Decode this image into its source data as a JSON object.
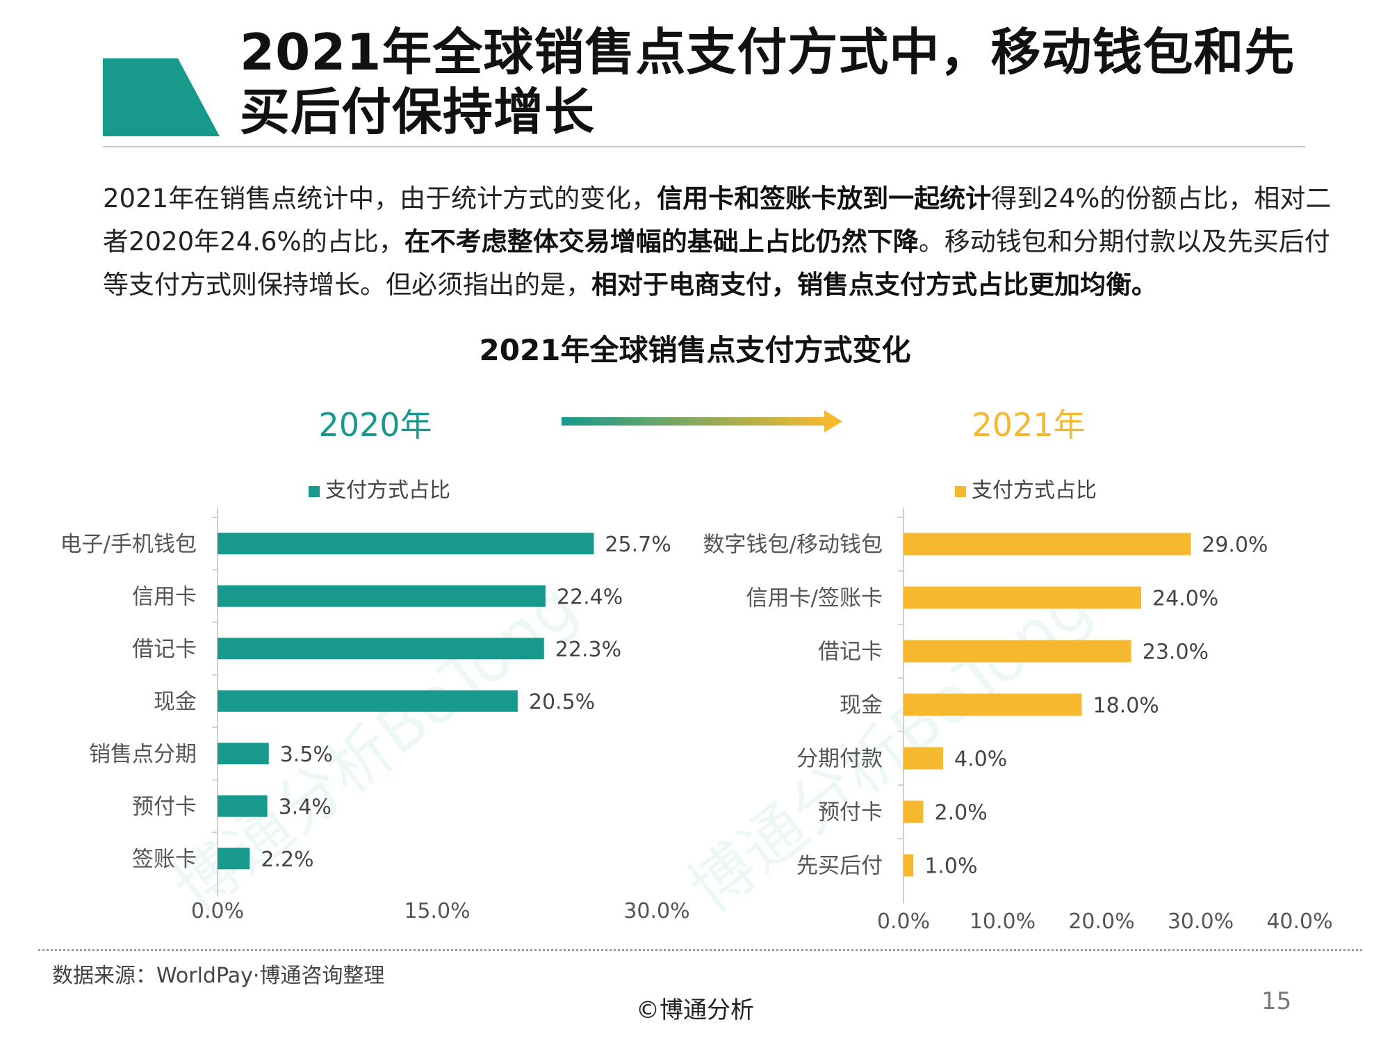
{
  "title": "2021年全球销售点支付方式中，移动钱包和先买后付保持增长",
  "intro": {
    "t1": "2021年在销售点统计中，由于统计方式的变化，",
    "b1": "信用卡和签账卡放到一起统计",
    "t2": "得到24%的份额占比，相对二者2020年24.6%的占比，",
    "b2": "在不考虑整体交易增幅的基础上占比仍然下降",
    "t3": "。移动钱包和分期付款以及先买后付等支付方式则保持增长。但必须指出的是，",
    "b3": "相对于电商支付，销售点支付方式占比更加均衡。"
  },
  "chart_title": "2021年全球销售点支付方式变化",
  "year_left": "2020年",
  "year_right": "2021年",
  "colors": {
    "teal": "#17998c",
    "yellow": "#f5b82e"
  },
  "watermark": "博通分析BoTong",
  "chart_data": [
    {
      "type": "bar",
      "orientation": "horizontal",
      "categories": [
        "电子/手机钱包",
        "信用卡",
        "借记卡",
        "现金",
        "销售点分期",
        "预付卡",
        "签账卡"
      ],
      "series": [
        {
          "name": "支付方式占比",
          "values": [
            25.7,
            22.4,
            22.3,
            20.5,
            3.5,
            3.4,
            2.2
          ],
          "labels": [
            "25.7%",
            "22.4%",
            "22.3%",
            "20.5%",
            "3.5%",
            "3.4%",
            "2.2%"
          ]
        }
      ],
      "xlim": [
        0,
        30
      ],
      "xticks": [
        "0.0%",
        "15.0%",
        "30.0%"
      ],
      "legend": "top",
      "grid": false,
      "color": "#17998c"
    },
    {
      "type": "bar",
      "orientation": "horizontal",
      "categories": [
        "数字钱包/移动钱包",
        "信用卡/签账卡",
        "借记卡",
        "现金",
        "分期付款",
        "预付卡",
        "先买后付"
      ],
      "series": [
        {
          "name": "支付方式占比",
          "values": [
            29.0,
            24.0,
            23.0,
            18.0,
            4.0,
            2.0,
            1.0
          ],
          "labels": [
            "29.0%",
            "24.0%",
            "23.0%",
            "18.0%",
            "4.0%",
            "2.0%",
            "1.0%"
          ]
        }
      ],
      "xlim": [
        0,
        40
      ],
      "xticks": [
        "0.0%",
        "10.0%",
        "20.0%",
        "30.0%",
        "40.0%"
      ],
      "legend": "top",
      "grid": false,
      "color": "#f5b82e"
    }
  ],
  "source": "数据来源：WorldPay·博通咨询整理",
  "copyright": "©博通分析",
  "page_number": "15"
}
